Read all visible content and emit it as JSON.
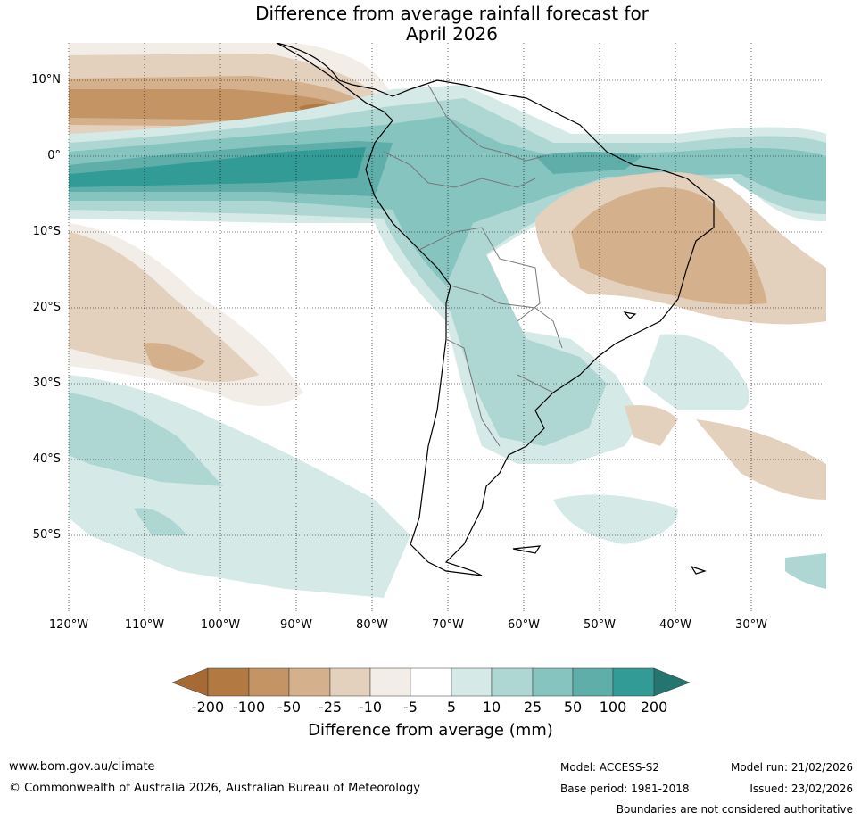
{
  "title": {
    "line1": "Difference from average rainfall forecast for",
    "line2": "April 2026"
  },
  "axes": {
    "lat_labels": [
      "10°N",
      "0°",
      "10°S",
      "20°S",
      "30°S",
      "40°S",
      "50°S"
    ],
    "lon_labels": [
      "120°W",
      "110°W",
      "100°W",
      "90°W",
      "80°W",
      "70°W",
      "60°W",
      "50°W",
      "40°W",
      "30°W"
    ]
  },
  "colorbar": {
    "ticks": [
      "-200",
      "-100",
      "-50",
      "-25",
      "-10",
      "-5",
      "5",
      "10",
      "25",
      "50",
      "100",
      "200"
    ],
    "colors": [
      "#a86a34",
      "#b27a42",
      "#c49465",
      "#d4b08c",
      "#e3d0bd",
      "#f2ede7",
      "#ffffff",
      "#d5e9e7",
      "#aed7d4",
      "#86c4c0",
      "#5faeaa",
      "#339b95",
      "#23756f"
    ],
    "label": "Difference from average (mm)"
  },
  "footer": {
    "website": "www.bom.gov.au/climate",
    "copyright": "© Commonwealth of Australia 2026, Australian Bureau of Meteorology",
    "model": "Model: ACCESS-S2",
    "base_period": "Base period: 1981-2018",
    "model_run": "Model run: 21/02/2026",
    "issued": "Issued: 23/02/2026",
    "disclaimer": "Boundaries are not considered authoritative"
  }
}
